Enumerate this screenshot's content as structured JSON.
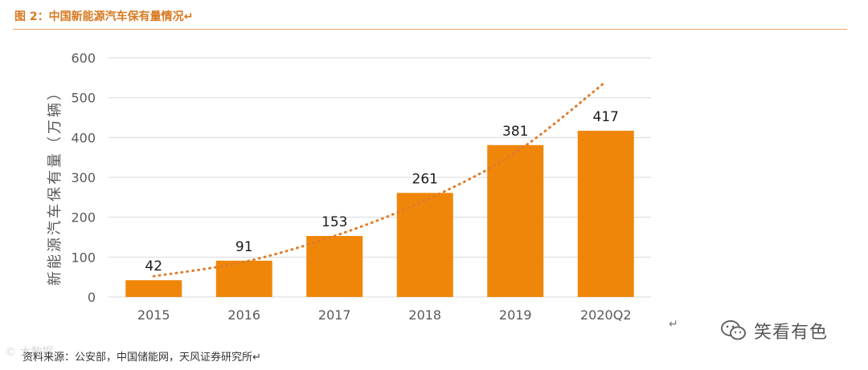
{
  "figure": {
    "title": "图 2：中国新能源汽车保有量情况↵",
    "source": "资料来源：公安部，中国储能网，天风证券研究所↵",
    "return_mark": "↵",
    "faded_mark": "© 大数据",
    "watermark": "笑看有色"
  },
  "colors": {
    "bar": "#ef860a",
    "trend": "#e07b2a",
    "accent": "#d7781e",
    "grid": "#d9d9d9"
  },
  "chart_data": {
    "type": "bar",
    "categories": [
      "2015",
      "2016",
      "2017",
      "2018",
      "2019",
      "2020Q2"
    ],
    "values": [
      42,
      91,
      153,
      261,
      381,
      417
    ],
    "data_labels": [
      "42",
      "91",
      "153",
      "261",
      "381",
      "417"
    ],
    "ylabel": "新能源汽车保有量（万辆）",
    "ylim": [
      0,
      600
    ],
    "yticks": [
      0,
      100,
      200,
      300,
      400,
      500,
      600
    ],
    "grid": true,
    "trendline": {
      "style": "dotted",
      "values": [
        52,
        88,
        153,
        242,
        362,
        540
      ]
    }
  }
}
